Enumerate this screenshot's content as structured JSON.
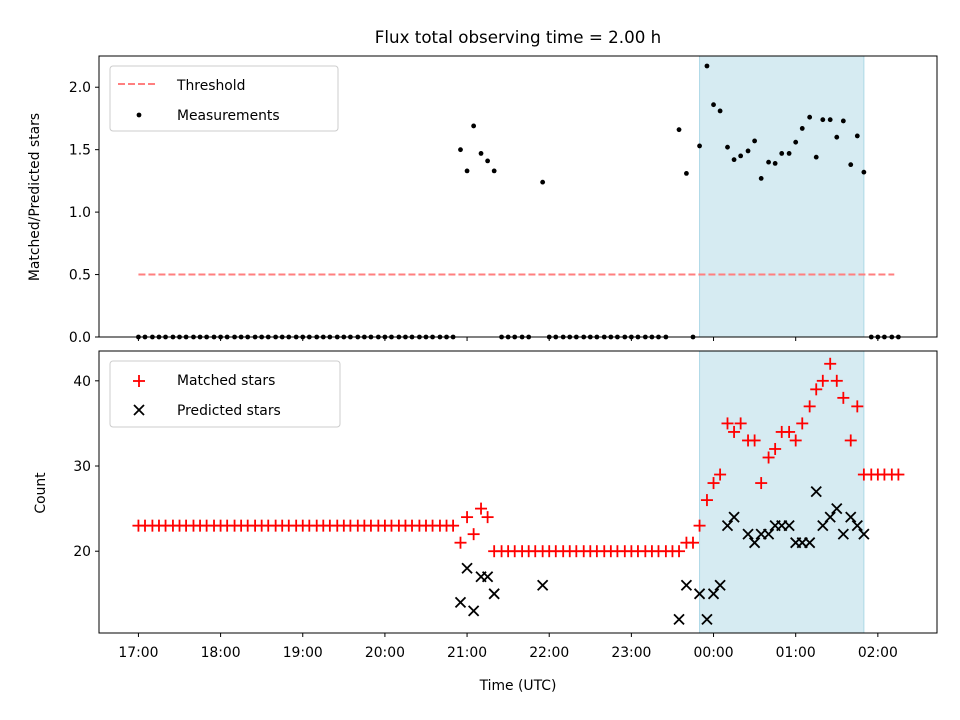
{
  "figure": {
    "title": "Flux total observing time = 2.00 h"
  },
  "chart_data": [
    {
      "type": "scatter",
      "panel": "top",
      "ylabel": "Matched/Predicted stars",
      "ylim": [
        0,
        2.25
      ],
      "yticks": [
        0.0,
        0.5,
        1.0,
        1.5,
        2.0
      ],
      "ytick_labels": [
        "0.0",
        "0.5",
        "1.0",
        "1.5",
        "2.0"
      ],
      "x_range_hours": [
        16.52,
        26.72
      ],
      "legend_position": "top-left",
      "highlight_span": {
        "x0": 23.83,
        "x1": 25.83,
        "color": "#add8e6"
      },
      "series": [
        {
          "name": "Threshold",
          "kind": "line",
          "style": "dashed",
          "color": "#ff7f7f",
          "x": [
            17.0,
            26.2
          ],
          "y": [
            0.5,
            0.5
          ]
        },
        {
          "name": "Measurements",
          "kind": "points",
          "color": "#000000",
          "x": [
            17.0,
            17.08,
            17.17,
            17.25,
            17.33,
            17.42,
            17.5,
            17.58,
            17.67,
            17.75,
            17.83,
            17.92,
            18.0,
            18.08,
            18.17,
            18.25,
            18.33,
            18.42,
            18.5,
            18.58,
            18.67,
            18.75,
            18.83,
            18.92,
            19.0,
            19.08,
            19.17,
            19.25,
            19.33,
            19.42,
            19.5,
            19.58,
            19.67,
            19.75,
            19.83,
            19.92,
            20.0,
            20.08,
            20.17,
            20.25,
            20.33,
            20.42,
            20.5,
            20.58,
            20.67,
            20.75,
            20.83,
            20.92,
            21.0,
            21.08,
            21.17,
            21.25,
            21.33,
            21.42,
            21.5,
            21.58,
            21.67,
            21.75,
            21.92,
            22.0,
            22.08,
            22.17,
            22.25,
            22.33,
            22.42,
            22.5,
            22.58,
            22.67,
            22.75,
            22.83,
            22.92,
            23.0,
            23.08,
            23.17,
            23.25,
            23.33,
            23.42,
            23.58,
            23.67,
            23.75,
            23.83,
            23.92,
            24.0,
            24.08,
            24.17,
            24.25,
            24.33,
            24.42,
            24.5,
            24.58,
            24.67,
            24.75,
            24.83,
            24.92,
            25.0,
            25.08,
            25.17,
            25.25,
            25.33,
            25.42,
            25.5,
            25.58,
            25.67,
            25.75,
            25.83,
            25.92,
            26.0,
            26.08,
            26.17,
            26.25
          ],
          "y": [
            0,
            0,
            0,
            0,
            0,
            0,
            0,
            0,
            0,
            0,
            0,
            0,
            0,
            0,
            0,
            0,
            0,
            0,
            0,
            0,
            0,
            0,
            0,
            0,
            0,
            0,
            0,
            0,
            0,
            0,
            0,
            0,
            0,
            0,
            0,
            0,
            0,
            0,
            0,
            0,
            0,
            0,
            0,
            0,
            0,
            0,
            0,
            1.5,
            1.33,
            1.69,
            1.47,
            1.41,
            1.33,
            0,
            0,
            0,
            0,
            0,
            1.24,
            0,
            0,
            0,
            0,
            0,
            0,
            0,
            0,
            0,
            0,
            0,
            0,
            0,
            0,
            0,
            0,
            0,
            0,
            1.66,
            1.31,
            0,
            1.53,
            2.17,
            1.86,
            1.81,
            1.52,
            1.42,
            1.45,
            1.49,
            1.57,
            1.27,
            1.4,
            1.39,
            1.47,
            1.47,
            1.56,
            1.67,
            1.76,
            1.44,
            1.74,
            1.74,
            1.6,
            1.73,
            1.38,
            1.61,
            1.32,
            0,
            0,
            0,
            0,
            0
          ]
        }
      ]
    },
    {
      "type": "scatter",
      "panel": "bottom",
      "ylabel": "Count",
      "xlabel": "Time (UTC)",
      "ylim": [
        10.4,
        43.5
      ],
      "yticks": [
        20,
        30,
        40
      ],
      "ytick_labels": [
        "20",
        "30",
        "40"
      ],
      "x_range_hours": [
        16.52,
        26.72
      ],
      "xticks_hours": [
        17,
        18,
        19,
        20,
        21,
        22,
        23,
        24,
        25,
        26
      ],
      "xtick_labels": [
        "17:00",
        "18:00",
        "19:00",
        "20:00",
        "21:00",
        "22:00",
        "23:00",
        "00:00",
        "01:00",
        "02:00"
      ],
      "legend_position": "top-left",
      "highlight_span": {
        "x0": 23.83,
        "x1": 25.83,
        "color": "#add8e6"
      },
      "series": [
        {
          "name": "Matched stars",
          "marker": "+",
          "color": "#ff0000",
          "x": [
            17.0,
            17.08,
            17.17,
            17.25,
            17.33,
            17.42,
            17.5,
            17.58,
            17.67,
            17.75,
            17.83,
            17.92,
            18.0,
            18.08,
            18.17,
            18.25,
            18.33,
            18.42,
            18.5,
            18.58,
            18.67,
            18.75,
            18.83,
            18.92,
            19.0,
            19.08,
            19.17,
            19.25,
            19.33,
            19.42,
            19.5,
            19.58,
            19.67,
            19.75,
            19.83,
            19.92,
            20.0,
            20.08,
            20.17,
            20.25,
            20.33,
            20.42,
            20.5,
            20.58,
            20.67,
            20.75,
            20.83,
            20.92,
            21.0,
            21.08,
            21.17,
            21.25,
            21.33,
            21.42,
            21.5,
            21.58,
            21.67,
            21.75,
            21.83,
            21.92,
            22.0,
            22.08,
            22.17,
            22.25,
            22.33,
            22.42,
            22.5,
            22.58,
            22.67,
            22.75,
            22.83,
            22.92,
            23.0,
            23.08,
            23.17,
            23.25,
            23.33,
            23.42,
            23.5,
            23.58,
            23.67,
            23.75,
            23.83,
            23.92,
            24.0,
            24.08,
            24.17,
            24.25,
            24.33,
            24.42,
            24.5,
            24.58,
            24.67,
            24.75,
            24.83,
            24.92,
            25.0,
            25.08,
            25.17,
            25.25,
            25.33,
            25.42,
            25.5,
            25.58,
            25.67,
            25.75,
            25.83,
            25.92,
            26.0,
            26.08,
            26.17,
            26.25
          ],
          "y": [
            23,
            23,
            23,
            23,
            23,
            23,
            23,
            23,
            23,
            23,
            23,
            23,
            23,
            23,
            23,
            23,
            23,
            23,
            23,
            23,
            23,
            23,
            23,
            23,
            23,
            23,
            23,
            23,
            23,
            23,
            23,
            23,
            23,
            23,
            23,
            23,
            23,
            23,
            23,
            23,
            23,
            23,
            23,
            23,
            23,
            23,
            23,
            21,
            24,
            22,
            25,
            24,
            20,
            20,
            20,
            20,
            20,
            20,
            20,
            20,
            20,
            20,
            20,
            20,
            20,
            20,
            20,
            20,
            20,
            20,
            20,
            20,
            20,
            20,
            20,
            20,
            20,
            20,
            20,
            20,
            21,
            21,
            23,
            26,
            28,
            29,
            35,
            34,
            35,
            33,
            33,
            28,
            31,
            32,
            34,
            34,
            33,
            35,
            37,
            39,
            40,
            42,
            40,
            38,
            33,
            37,
            29,
            29,
            29,
            29,
            29,
            29
          ]
        },
        {
          "name": "Predicted stars",
          "marker": "x",
          "color": "#000000",
          "x": [
            20.92,
            21.0,
            21.08,
            21.17,
            21.25,
            21.33,
            21.92,
            23.58,
            23.67,
            23.83,
            23.92,
            24.0,
            24.08,
            24.17,
            24.25,
            24.42,
            24.5,
            24.58,
            24.67,
            24.75,
            24.83,
            24.92,
            25.0,
            25.08,
            25.17,
            25.25,
            25.33,
            25.42,
            25.5,
            25.58,
            25.67,
            25.75,
            25.83
          ],
          "y": [
            14,
            18,
            13,
            17,
            17,
            15,
            16,
            12,
            16,
            15,
            12,
            15,
            16,
            23,
            24,
            22,
            21,
            22,
            22,
            23,
            23,
            23,
            21,
            21,
            21,
            27,
            23,
            24,
            25,
            22,
            24,
            23,
            22
          ]
        }
      ]
    }
  ]
}
